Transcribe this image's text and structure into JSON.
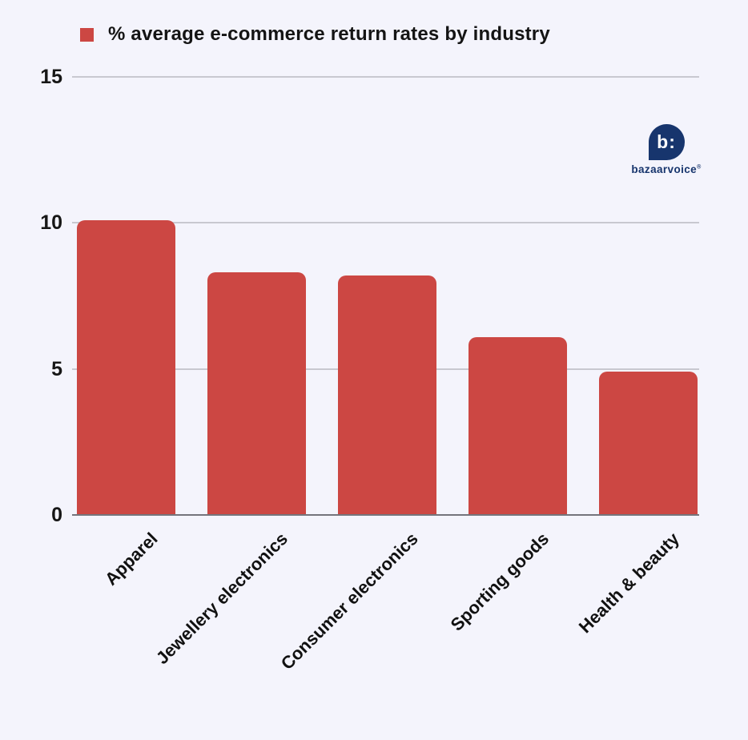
{
  "page": {
    "background": "#f4f4fc"
  },
  "legend": {
    "label": "% average e-commerce return rates by industry",
    "marker_color": "#cc4743"
  },
  "logo": {
    "symbol": "b:",
    "wordmark": "bazaarvoice",
    "trademark": "®",
    "color": "#17356d"
  },
  "chart_data": {
    "type": "bar",
    "title": "% average e-commerce return rates by industry",
    "categories": [
      "Apparel",
      "Jewellery electronics",
      "Consumer electronics",
      "Sporting goods",
      "Health & beauty"
    ],
    "values": [
      10.1,
      8.3,
      8.2,
      6.1,
      4.9
    ],
    "xlabel": "",
    "ylabel": "",
    "ylim": [
      0,
      15
    ],
    "yticks": [
      0,
      5,
      10,
      15
    ],
    "bar_color": "#cc4743",
    "grid": true,
    "gridline_color": "#c8c8d0",
    "axis_line_color": "#74747c",
    "legend_position": "top-left"
  }
}
